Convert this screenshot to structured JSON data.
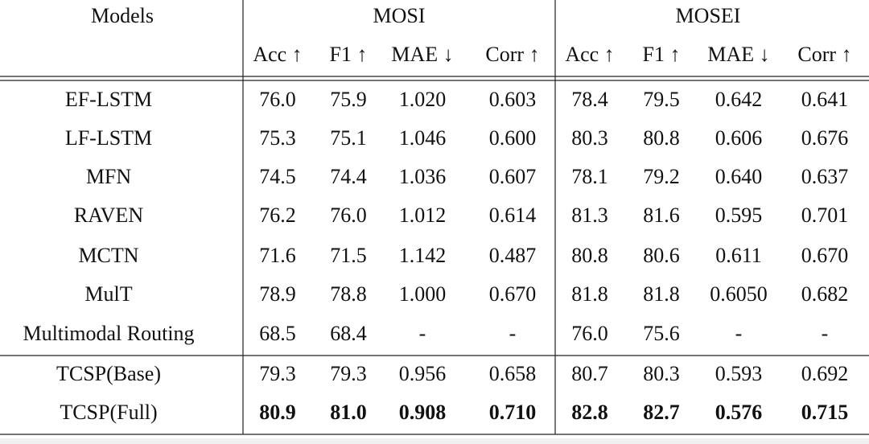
{
  "table": {
    "model_header": "Models",
    "groups": [
      "MOSI",
      "MOSEI"
    ],
    "columns": [
      "Acc ↑",
      "F1 ↑",
      "MAE ↓",
      "Corr ↑",
      "Acc ↑",
      "F1 ↑",
      "MAE ↓",
      "Corr ↑"
    ],
    "rows": [
      {
        "model": "EF-LSTM",
        "values": [
          "76.0",
          "75.9",
          "1.020",
          "0.603",
          "78.4",
          "79.5",
          "0.642",
          "0.641"
        ]
      },
      {
        "model": "LF-LSTM",
        "values": [
          "75.3",
          "75.1",
          "1.046",
          "0.600",
          "80.3",
          "80.8",
          "0.606",
          "0.676"
        ]
      },
      {
        "model": "MFN",
        "values": [
          "74.5",
          "74.4",
          "1.036",
          "0.607",
          "78.1",
          "79.2",
          "0.640",
          "0.637"
        ]
      },
      {
        "model": "RAVEN",
        "values": [
          "76.2",
          "76.0",
          "1.012",
          "0.614",
          "81.3",
          "81.6",
          "0.595",
          "0.701"
        ]
      },
      {
        "model": "MCTN",
        "values": [
          "71.6",
          "71.5",
          "1.142",
          "0.487",
          "80.8",
          "80.6",
          "0.611",
          "0.670"
        ]
      },
      {
        "model": "MulT",
        "values": [
          "78.9",
          "78.8",
          "1.000",
          "0.670",
          "81.8",
          "81.8",
          "0.6050",
          "0.682"
        ]
      },
      {
        "model": "Multimodal Routing",
        "values": [
          "68.5",
          "68.4",
          "-",
          "-",
          "76.0",
          "75.6",
          "-",
          "-"
        ]
      },
      {
        "model": "TCSP(Base)",
        "values": [
          "79.3",
          "79.3",
          "0.956",
          "0.658",
          "80.7",
          "80.3",
          "0.593",
          "0.692"
        ]
      },
      {
        "model": "TCSP(Full)",
        "values": [
          "80.9",
          "81.0",
          "0.908",
          "0.710",
          "82.8",
          "82.7",
          "0.576",
          "0.715"
        ]
      }
    ]
  }
}
